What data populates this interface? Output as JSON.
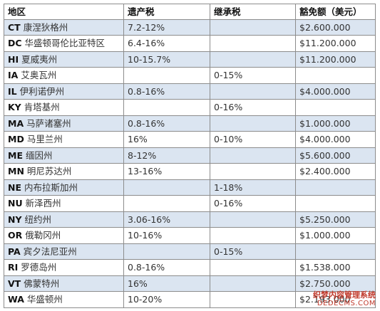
{
  "headers": {
    "region": "地区",
    "estate": "遗产税",
    "inheritance": "继承税",
    "exemption": "豁免额（美元）"
  },
  "rows": [
    {
      "code": "CT",
      "name": "康涅狄格州",
      "estate": "7.2-12%",
      "inheritance": "",
      "exemption": "$2.600.000"
    },
    {
      "code": "DC",
      "name": "华盛顿哥伦比亚特区",
      "estate": "6.4-16%",
      "inheritance": "",
      "exemption": "$11.200.000"
    },
    {
      "code": "HI",
      "name": "夏威夷州",
      "estate": "10-15.7%",
      "inheritance": "",
      "exemption": "$11.200.000"
    },
    {
      "code": "IA",
      "name": "艾奥瓦州",
      "estate": "",
      "inheritance": "0-15%",
      "exemption": ""
    },
    {
      "code": "IL",
      "name": "伊利诺伊州",
      "estate": "0.8-16%",
      "inheritance": "",
      "exemption": "$4.000.000"
    },
    {
      "code": "KY",
      "name": "肯塔基州",
      "estate": "",
      "inheritance": "0-16%",
      "exemption": ""
    },
    {
      "code": "MA",
      "name": "马萨诸塞州",
      "estate": "0.8-16%",
      "inheritance": "",
      "exemption": "$1.000.000"
    },
    {
      "code": "MD",
      "name": "马里兰州",
      "estate": "16%",
      "inheritance": "0-10%",
      "exemption": "$4.000.000"
    },
    {
      "code": "ME",
      "name": "缅因州",
      "estate": "8-12%",
      "inheritance": "",
      "exemption": "$5.600.000"
    },
    {
      "code": "MN",
      "name": "明尼苏达州",
      "estate": "13-16%",
      "inheritance": "",
      "exemption": "$2.400.000"
    },
    {
      "code": "NE",
      "name": "内布拉斯加州",
      "estate": "",
      "inheritance": "1-18%",
      "exemption": ""
    },
    {
      "code": "NU",
      "name": "新泽西州",
      "estate": "",
      "inheritance": "0-16%",
      "exemption": ""
    },
    {
      "code": "NY",
      "name": "纽约州",
      "estate": "3.06-16%",
      "inheritance": "",
      "exemption": "$5.250.000"
    },
    {
      "code": "OR",
      "name": "俄勒冈州",
      "estate": "10-16%",
      "inheritance": "",
      "exemption": "$1.000.000"
    },
    {
      "code": "PA",
      "name": "宾夕法尼亚州",
      "estate": "",
      "inheritance": "0-15%",
      "exemption": ""
    },
    {
      "code": "RI",
      "name": "罗德岛州",
      "estate": "0.8-16%",
      "inheritance": "",
      "exemption": "$1.538.000"
    },
    {
      "code": "VT",
      "name": "佛蒙特州",
      "estate": "16%",
      "inheritance": "",
      "exemption": "$2.750.000"
    },
    {
      "code": "WA",
      "name": "华盛顿州",
      "estate": "10-20%",
      "inheritance": "",
      "exemption": "$2.193.000"
    }
  ],
  "watermark": {
    "line1": "织梦内容管理系统",
    "line2": "DEDECMS.COM"
  }
}
